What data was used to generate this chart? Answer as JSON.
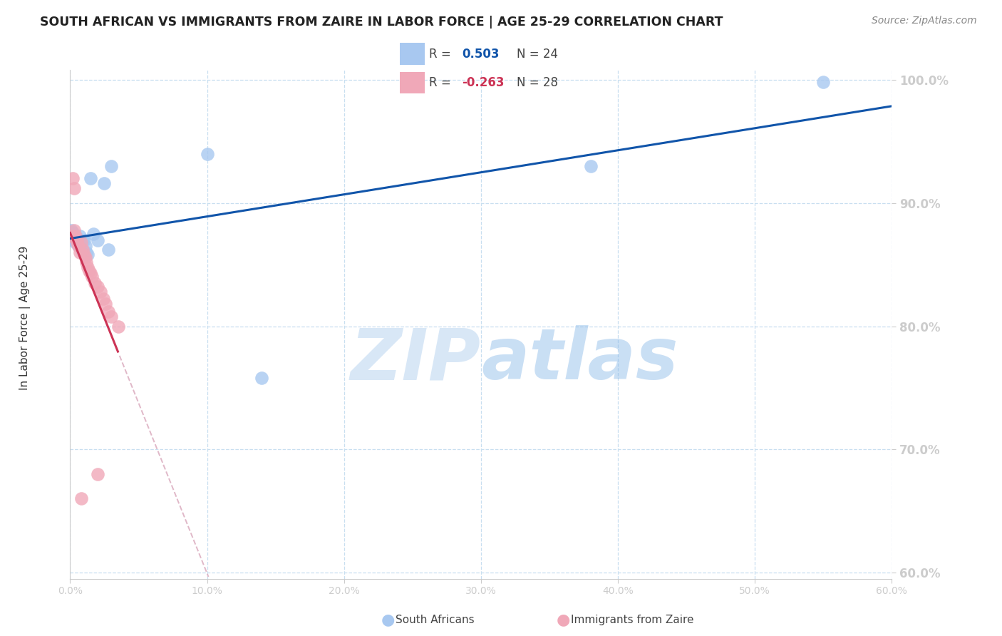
{
  "title": "SOUTH AFRICAN VS IMMIGRANTS FROM ZAIRE IN LABOR FORCE | AGE 25-29 CORRELATION CHART",
  "source": "Source: ZipAtlas.com",
  "ylabel": "In Labor Force | Age 25-29",
  "watermark": "ZIPatlas",
  "xlim": [
    0.0,
    0.6
  ],
  "ylim": [
    0.595,
    1.008
  ],
  "yticks": [
    0.6,
    0.7,
    0.8,
    0.9,
    1.0
  ],
  "ytick_labels": [
    "60.0%",
    "70.0%",
    "80.0%",
    "90.0%",
    "100.0%"
  ],
  "xticks": [
    0.0,
    0.1,
    0.2,
    0.3,
    0.4,
    0.5,
    0.6
  ],
  "xtick_labels": [
    "0.0%",
    "10.0%",
    "20.0%",
    "30.0%",
    "40.0%",
    "50.0%",
    "60.0%"
  ],
  "blue_x": [
    0.001,
    0.002,
    0.002,
    0.003,
    0.004,
    0.005,
    0.006,
    0.007,
    0.008,
    0.009,
    0.01,
    0.011,
    0.012,
    0.013,
    0.015,
    0.017,
    0.02,
    0.025,
    0.028,
    0.03,
    0.1,
    0.14,
    0.55,
    0.38
  ],
  "blue_y": [
    0.878,
    0.876,
    0.872,
    0.87,
    0.868,
    0.872,
    0.865,
    0.873,
    0.862,
    0.87,
    0.87,
    0.865,
    0.86,
    0.858,
    0.92,
    0.875,
    0.87,
    0.916,
    0.862,
    0.93,
    0.94,
    0.758,
    0.998,
    0.93
  ],
  "pink_x": [
    0.001,
    0.002,
    0.003,
    0.003,
    0.004,
    0.005,
    0.005,
    0.006,
    0.007,
    0.008,
    0.009,
    0.01,
    0.011,
    0.012,
    0.013,
    0.014,
    0.015,
    0.016,
    0.018,
    0.02,
    0.022,
    0.024,
    0.026,
    0.028,
    0.03,
    0.035,
    0.008,
    0.02
  ],
  "pink_y": [
    0.873,
    0.92,
    0.878,
    0.912,
    0.873,
    0.87,
    0.868,
    0.865,
    0.86,
    0.868,
    0.862,
    0.858,
    0.856,
    0.852,
    0.848,
    0.845,
    0.843,
    0.84,
    0.835,
    0.832,
    0.828,
    0.822,
    0.818,
    0.812,
    0.808,
    0.8,
    0.66,
    0.68
  ],
  "blue_color": "#a8c8f0",
  "pink_color": "#f0a8b8",
  "blue_line_color": "#1155aa",
  "pink_line_color": "#cc3355",
  "pink_dash_color": "#e0b8c8",
  "axis_tick_color": "#4488cc",
  "grid_color": "#c8dff0",
  "title_color": "#222222",
  "source_color": "#888888",
  "watermark_color": "#d8eaf8",
  "spine_color": "#cccccc"
}
